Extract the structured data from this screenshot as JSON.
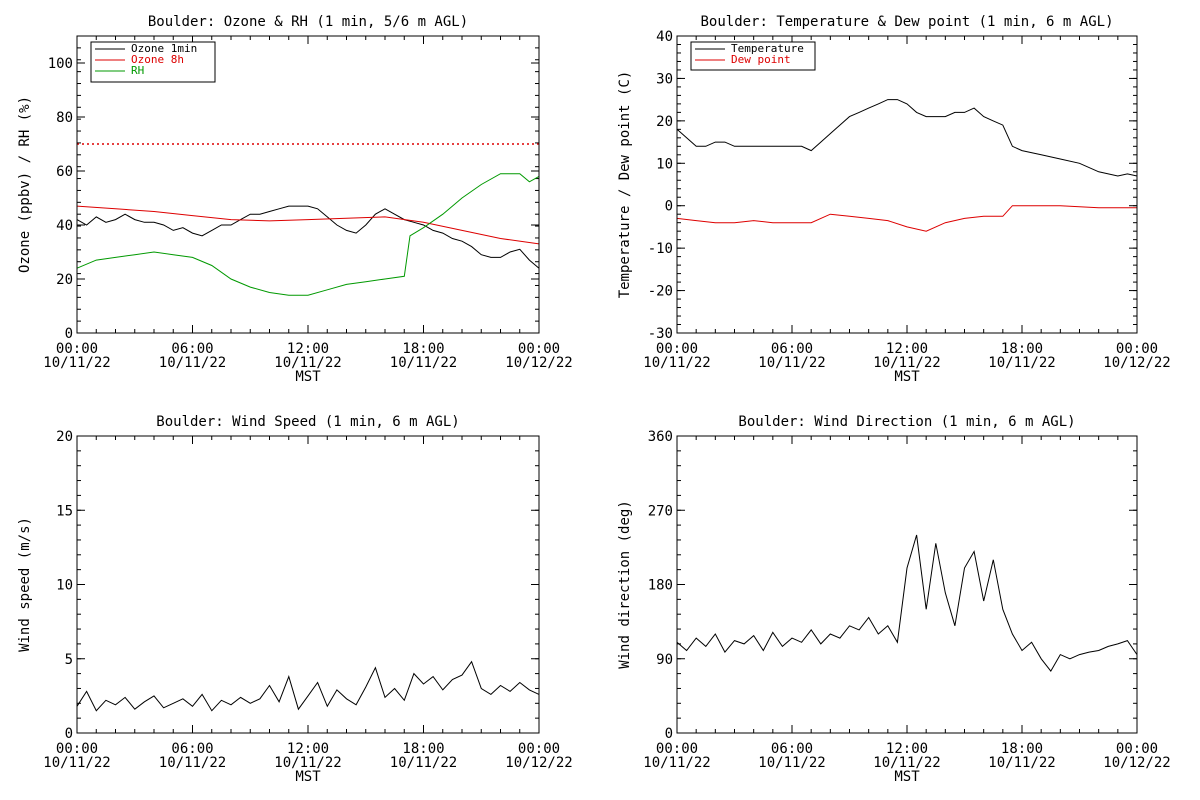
{
  "chart_data": [
    {
      "type": "line",
      "title": "Boulder: Ozone & RH (1 min, 5/6 m AGL)",
      "ylabel": "Ozone (ppbv) / RH (%)",
      "xlabel": "MST",
      "ylim": [
        0,
        110
      ],
      "yticks": [
        "0",
        "20",
        "40",
        "60",
        "80",
        "100"
      ],
      "xticks": [
        {
          "time": "00:00",
          "date": "10/11/22"
        },
        {
          "time": "06:00",
          "date": "10/11/22"
        },
        {
          "time": "12:00",
          "date": "10/11/22"
        },
        {
          "time": "18:00",
          "date": "10/11/22"
        },
        {
          "time": "00:00",
          "date": "10/12/22"
        }
      ],
      "legend": {
        "placement": "top-left"
      },
      "reference_lines": [
        {
          "y": 70,
          "color": "#dd0000",
          "style": "dotted"
        }
      ],
      "series": [
        {
          "name": "Ozone 1min",
          "color": "#000000",
          "x": [
            0,
            0.5,
            1,
            1.5,
            2,
            2.5,
            3,
            3.5,
            4,
            4.5,
            5,
            5.5,
            6,
            6.5,
            7,
            7.5,
            8,
            8.5,
            9,
            9.5,
            10,
            10.5,
            11,
            11.5,
            12,
            12.5,
            13,
            13.5,
            14,
            14.5,
            15,
            15.5,
            16,
            16.5,
            17,
            17.5,
            18,
            18.5,
            19,
            19.5,
            20,
            20.5,
            21,
            21.5,
            22,
            22.5,
            23,
            23.5,
            24
          ],
          "y": [
            42,
            40,
            43,
            41,
            42,
            44,
            42,
            41,
            41,
            40,
            38,
            39,
            37,
            36,
            38,
            40,
            40,
            42,
            44,
            44,
            45,
            46,
            47,
            47,
            47,
            46,
            43,
            40,
            38,
            37,
            40,
            44,
            46,
            44,
            42,
            41,
            40,
            38,
            37,
            35,
            34,
            32,
            29,
            28,
            28,
            30,
            31,
            27,
            24
          ]
        },
        {
          "name": "Ozone 8h",
          "color": "#dd0000",
          "x": [
            0,
            2,
            4,
            6,
            8,
            10,
            12,
            14,
            16,
            18,
            20,
            22,
            24
          ],
          "y": [
            47,
            46,
            45,
            43.5,
            42,
            41.5,
            42,
            42.5,
            43,
            41,
            38,
            35,
            33
          ]
        },
        {
          "name": "RH",
          "color": "#009900",
          "x": [
            0,
            1,
            2,
            3,
            4,
            5,
            6,
            7,
            8,
            9,
            10,
            11,
            12,
            13,
            14,
            15,
            16,
            17,
            17.3,
            18,
            19,
            20,
            21,
            22,
            23,
            23.5,
            24
          ],
          "y": [
            24,
            27,
            28,
            29,
            30,
            29,
            28,
            25,
            20,
            17,
            15,
            14,
            14,
            16,
            18,
            19,
            20,
            21,
            36,
            39,
            44,
            50,
            55,
            59,
            59,
            56,
            58
          ]
        }
      ]
    },
    {
      "type": "line",
      "title": "Boulder: Temperature & Dew point (1 min, 6 m AGL)",
      "ylabel": "Temperature / Dew point (C)",
      "xlabel": "MST",
      "ylim": [
        -30,
        40
      ],
      "yticks": [
        "-30",
        "-20",
        "-10",
        "0",
        "10",
        "20",
        "30",
        "40"
      ],
      "xticks": [
        {
          "time": "00:00",
          "date": "10/11/22"
        },
        {
          "time": "06:00",
          "date": "10/11/22"
        },
        {
          "time": "12:00",
          "date": "10/11/22"
        },
        {
          "time": "18:00",
          "date": "10/11/22"
        },
        {
          "time": "00:00",
          "date": "10/12/22"
        }
      ],
      "legend": {
        "placement": "top-left"
      },
      "series": [
        {
          "name": "Temperature",
          "color": "#000000",
          "x": [
            0,
            0.5,
            1,
            1.5,
            2,
            2.5,
            3,
            3.5,
            4,
            4.5,
            5,
            5.5,
            6,
            6.5,
            7,
            7.5,
            8,
            8.5,
            9,
            9.5,
            10,
            10.5,
            11,
            11.5,
            12,
            12.5,
            13,
            13.5,
            14,
            14.5,
            15,
            15.5,
            16,
            16.5,
            17,
            17.5,
            18,
            19,
            20,
            21,
            22,
            23,
            23.5,
            24
          ],
          "y": [
            18,
            16,
            14,
            14,
            15,
            15,
            14,
            14,
            14,
            14,
            14,
            14,
            14,
            14,
            13,
            15,
            17,
            19,
            21,
            22,
            23,
            24,
            25,
            25,
            24,
            22,
            21,
            21,
            21,
            22,
            22,
            23,
            21,
            20,
            19,
            14,
            13,
            12,
            11,
            10,
            8,
            7,
            7.5,
            7
          ]
        },
        {
          "name": "Dew point",
          "color": "#dd0000",
          "x": [
            0,
            1,
            2,
            3,
            4,
            5,
            6,
            7,
            8,
            9,
            10,
            11,
            12,
            13,
            14,
            15,
            16,
            17,
            17.5,
            18,
            20,
            22,
            24
          ],
          "y": [
            -3,
            -3.5,
            -4,
            -4,
            -3.5,
            -4,
            -4,
            -4,
            -2,
            -2.5,
            -3,
            -3.5,
            -5,
            -6,
            -4,
            -3,
            -2.5,
            -2.5,
            0,
            0,
            0,
            -0.5,
            -0.5
          ]
        }
      ]
    },
    {
      "type": "line",
      "title": "Boulder: Wind Speed (1 min, 6 m AGL)",
      "ylabel": "Wind speed (m/s)",
      "xlabel": "MST",
      "ylim": [
        0,
        20
      ],
      "yticks": [
        "0",
        "5",
        "10",
        "15",
        "20"
      ],
      "xticks": [
        {
          "time": "00:00",
          "date": "10/11/22"
        },
        {
          "time": "06:00",
          "date": "10/11/22"
        },
        {
          "time": "12:00",
          "date": "10/11/22"
        },
        {
          "time": "18:00",
          "date": "10/11/22"
        },
        {
          "time": "00:00",
          "date": "10/12/22"
        }
      ],
      "series": [
        {
          "name": "",
          "color": "#000000",
          "x": [
            0,
            0.5,
            1,
            1.5,
            2,
            2.5,
            3,
            3.5,
            4,
            4.5,
            5,
            5.5,
            6,
            6.5,
            7,
            7.5,
            8,
            8.5,
            9,
            9.5,
            10,
            10.5,
            11,
            11.5,
            12,
            12.5,
            13,
            13.5,
            14,
            14.5,
            15,
            15.5,
            16,
            16.5,
            17,
            17.5,
            18,
            18.5,
            19,
            19.5,
            20,
            20.5,
            21,
            21.5,
            22,
            22.5,
            23,
            23.5,
            24
          ],
          "y": [
            1.8,
            2.8,
            1.5,
            2.2,
            1.9,
            2.4,
            1.6,
            2.1,
            2.5,
            1.7,
            2.0,
            2.3,
            1.8,
            2.6,
            1.5,
            2.2,
            1.9,
            2.4,
            2.0,
            2.3,
            3.2,
            2.1,
            3.8,
            1.6,
            2.5,
            3.4,
            1.8,
            2.9,
            2.3,
            1.9,
            3.1,
            4.4,
            2.4,
            3.0,
            2.2,
            4.0,
            3.3,
            3.8,
            2.9,
            3.6,
            3.9,
            4.8,
            3.0,
            2.6,
            3.2,
            2.8,
            3.4,
            2.9,
            2.6
          ]
        }
      ]
    },
    {
      "type": "line",
      "title": "Boulder: Wind Direction (1 min, 6 m AGL)",
      "ylabel": "Wind direction (deg)",
      "xlabel": "MST",
      "ylim": [
        0,
        360
      ],
      "yticks": [
        "0",
        "90",
        "180",
        "270",
        "360"
      ],
      "xticks": [
        {
          "time": "00:00",
          "date": "10/11/22"
        },
        {
          "time": "06:00",
          "date": "10/11/22"
        },
        {
          "time": "12:00",
          "date": "10/11/22"
        },
        {
          "time": "18:00",
          "date": "10/11/22"
        },
        {
          "time": "00:00",
          "date": "10/12/22"
        }
      ],
      "series": [
        {
          "name": "",
          "color": "#000000",
          "x": [
            0,
            0.5,
            1,
            1.5,
            2,
            2.5,
            3,
            3.5,
            4,
            4.5,
            5,
            5.5,
            6,
            6.5,
            7,
            7.5,
            8,
            8.5,
            9,
            9.5,
            10,
            10.5,
            11,
            11.5,
            12,
            12.5,
            13,
            13.5,
            14,
            14.5,
            15,
            15.5,
            16,
            16.5,
            17,
            17.5,
            18,
            18.5,
            19,
            19.5,
            20,
            20.5,
            21,
            21.5,
            22,
            22.5,
            23,
            23.5,
            24
          ],
          "y": [
            110,
            100,
            115,
            105,
            120,
            98,
            112,
            108,
            118,
            100,
            122,
            105,
            115,
            110,
            125,
            108,
            120,
            115,
            130,
            125,
            140,
            120,
            130,
            110,
            200,
            240,
            150,
            230,
            170,
            130,
            200,
            220,
            160,
            210,
            150,
            120,
            100,
            110,
            90,
            75,
            95,
            90,
            95,
            98,
            100,
            105,
            108,
            112,
            95
          ]
        }
      ]
    }
  ]
}
